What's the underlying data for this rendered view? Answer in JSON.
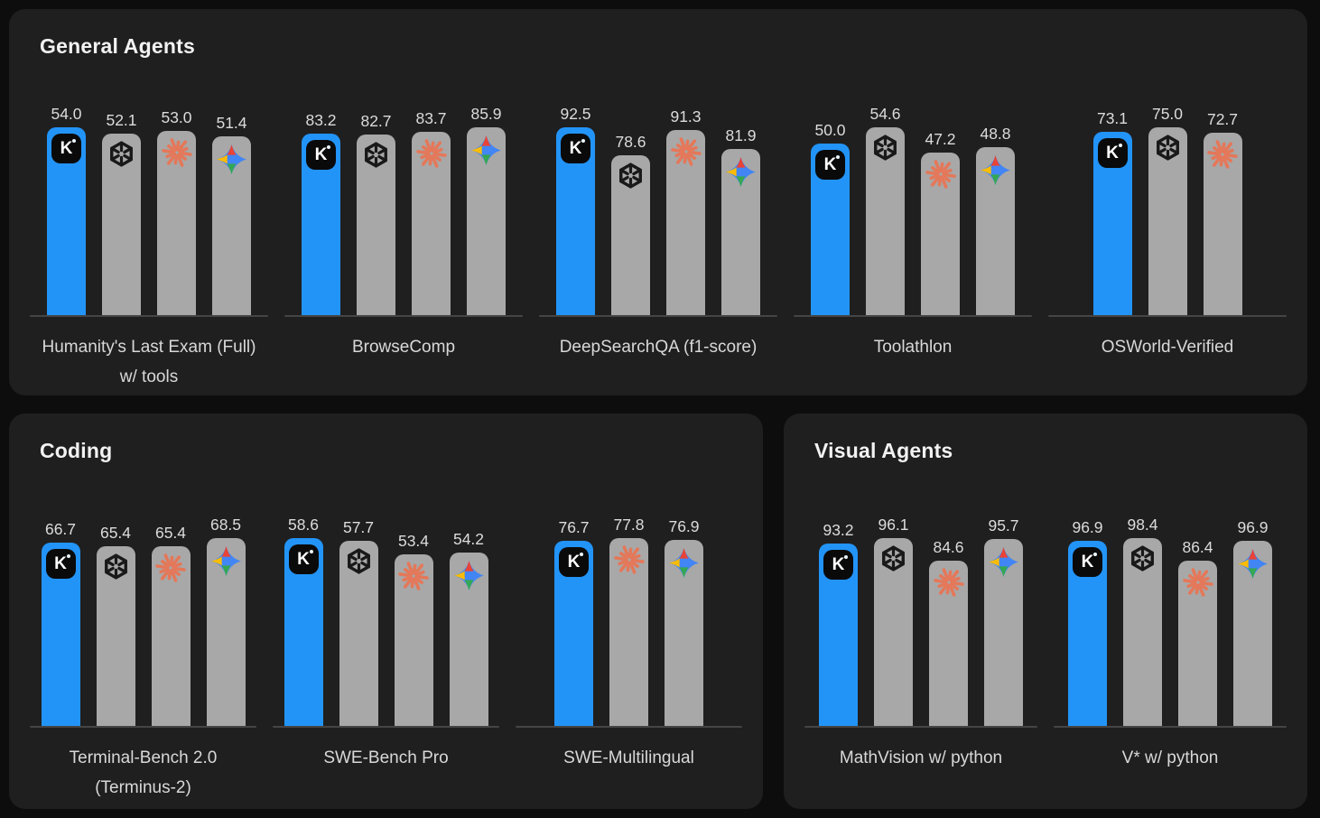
{
  "colors": {
    "highlight_blue": "#2394f7",
    "bar_gray": "#a8a8a8",
    "panel_bg": "#1f1f1f",
    "page_bg": "#0d0d0d",
    "baseline": "#454545",
    "value_text": "#dcdcdc",
    "label_text": "#d8d8d8",
    "title_text": "#f2f2f2",
    "claude_coral": "#e4785a",
    "openai_dark": "#191919",
    "gemini_blue": "#4285f4",
    "gemini_red": "#ea4335",
    "gemini_yellow": "#fbbc05",
    "gemini_green": "#34a853"
  },
  "chart_data": [
    {
      "type": "bar",
      "title": "General Agents",
      "categories": [
        "Humanity's Last Exam (Full) w/ tools",
        "BrowseComp",
        "DeepSearchQA (f1-score)",
        "Toolathlon",
        "OSWorld-Verified"
      ],
      "series": [
        {
          "name": "Kimi",
          "values": [
            54.0,
            83.2,
            92.5,
            50.0,
            73.1
          ]
        },
        {
          "name": "OpenAI",
          "values": [
            52.1,
            82.7,
            78.6,
            54.6,
            75.0
          ]
        },
        {
          "name": "Claude",
          "values": [
            53.0,
            83.7,
            91.3,
            47.2,
            72.7
          ]
        },
        {
          "name": "Gemini",
          "values": [
            51.4,
            85.9,
            81.9,
            48.8,
            null
          ]
        }
      ],
      "ylim": [
        0,
        100
      ],
      "grid": false,
      "legend": "icons-on-bars"
    },
    {
      "type": "bar",
      "title": "Coding",
      "categories": [
        "Terminal-Bench 2.0 (Terminus-2)",
        "SWE-Bench Pro",
        "SWE-Multilingual"
      ],
      "series": [
        {
          "name": "Kimi",
          "values": [
            66.7,
            58.6,
            76.7
          ]
        },
        {
          "name": "OpenAI",
          "values": [
            65.4,
            57.7,
            null
          ]
        },
        {
          "name": "Claude",
          "values": [
            65.4,
            53.4,
            77.8
          ]
        },
        {
          "name": "Gemini",
          "values": [
            68.5,
            54.2,
            76.9
          ]
        }
      ],
      "ylim": [
        0,
        100
      ],
      "grid": false,
      "legend": "icons-on-bars"
    },
    {
      "type": "bar",
      "title": "Visual Agents",
      "categories": [
        "MathVision w/ python",
        "V* w/ python"
      ],
      "series": [
        {
          "name": "Kimi",
          "values": [
            93.2,
            96.9
          ]
        },
        {
          "name": "OpenAI",
          "values": [
            96.1,
            98.4
          ]
        },
        {
          "name": "Claude",
          "values": [
            84.6,
            86.4
          ]
        },
        {
          "name": "Gemini",
          "values": [
            95.7,
            96.9
          ]
        }
      ],
      "ylim": [
        0,
        100
      ],
      "grid": false,
      "legend": "icons-on-bars"
    }
  ],
  "panels": [
    {
      "title": "General Agents",
      "groups": [
        {
          "label_lines": [
            "Humanity's Last Exam (Full)",
            "w/ tools"
          ],
          "bars": [
            {
              "icon": "kimi-k-icon",
              "value": "54.0",
              "highlight": true
            },
            {
              "icon": "openai-icon",
              "value": "52.1",
              "highlight": false
            },
            {
              "icon": "claude-icon",
              "value": "53.0",
              "highlight": false
            },
            {
              "icon": "gemini-icon",
              "value": "51.4",
              "highlight": false
            }
          ]
        },
        {
          "label_lines": [
            "BrowseComp"
          ],
          "bars": [
            {
              "icon": "kimi-k-icon",
              "value": "83.2",
              "highlight": true
            },
            {
              "icon": "openai-icon",
              "value": "82.7",
              "highlight": false
            },
            {
              "icon": "claude-icon",
              "value": "83.7",
              "highlight": false
            },
            {
              "icon": "gemini-icon",
              "value": "85.9",
              "highlight": false
            }
          ]
        },
        {
          "label_lines": [
            "DeepSearchQA (f1-score)"
          ],
          "bars": [
            {
              "icon": "kimi-k-icon",
              "value": "92.5",
              "highlight": true
            },
            {
              "icon": "openai-icon",
              "value": "78.6",
              "highlight": false
            },
            {
              "icon": "claude-icon",
              "value": "91.3",
              "highlight": false
            },
            {
              "icon": "gemini-icon",
              "value": "81.9",
              "highlight": false
            }
          ]
        },
        {
          "label_lines": [
            "Toolathlon"
          ],
          "bars": [
            {
              "icon": "kimi-k-icon",
              "value": "50.0",
              "highlight": true
            },
            {
              "icon": "openai-icon",
              "value": "54.6",
              "highlight": false
            },
            {
              "icon": "claude-icon",
              "value": "47.2",
              "highlight": false
            },
            {
              "icon": "gemini-icon",
              "value": "48.8",
              "highlight": false
            }
          ]
        },
        {
          "label_lines": [
            "OSWorld-Verified"
          ],
          "bars": [
            {
              "icon": "kimi-k-icon",
              "value": "73.1",
              "highlight": true
            },
            {
              "icon": "openai-icon",
              "value": "75.0",
              "highlight": false
            },
            {
              "icon": "claude-icon",
              "value": "72.7",
              "highlight": false
            }
          ]
        }
      ]
    },
    {
      "title": "Coding",
      "groups": [
        {
          "label_lines": [
            "Terminal-Bench 2.0",
            "(Terminus-2)"
          ],
          "bars": [
            {
              "icon": "kimi-k-icon",
              "value": "66.7",
              "highlight": true
            },
            {
              "icon": "openai-icon",
              "value": "65.4",
              "highlight": false
            },
            {
              "icon": "claude-icon",
              "value": "65.4",
              "highlight": false
            },
            {
              "icon": "gemini-icon",
              "value": "68.5",
              "highlight": false
            }
          ]
        },
        {
          "label_lines": [
            "SWE-Bench Pro"
          ],
          "bars": [
            {
              "icon": "kimi-k-icon",
              "value": "58.6",
              "highlight": true
            },
            {
              "icon": "openai-icon",
              "value": "57.7",
              "highlight": false
            },
            {
              "icon": "claude-icon",
              "value": "53.4",
              "highlight": false
            },
            {
              "icon": "gemini-icon",
              "value": "54.2",
              "highlight": false
            }
          ]
        },
        {
          "label_lines": [
            "SWE-Multilingual"
          ],
          "bars": [
            {
              "icon": "kimi-k-icon",
              "value": "76.7",
              "highlight": true
            },
            {
              "icon": "claude-icon",
              "value": "77.8",
              "highlight": false
            },
            {
              "icon": "gemini-icon",
              "value": "76.9",
              "highlight": false
            }
          ]
        }
      ]
    },
    {
      "title": "Visual Agents",
      "groups": [
        {
          "label_lines": [
            "MathVision w/ python"
          ],
          "bars": [
            {
              "icon": "kimi-k-icon",
              "value": "93.2",
              "highlight": true
            },
            {
              "icon": "openai-icon",
              "value": "96.1",
              "highlight": false
            },
            {
              "icon": "claude-icon",
              "value": "84.6",
              "highlight": false
            },
            {
              "icon": "gemini-icon",
              "value": "95.7",
              "highlight": false
            }
          ]
        },
        {
          "label_lines": [
            "V* w/ python"
          ],
          "bars": [
            {
              "icon": "kimi-k-icon",
              "value": "96.9",
              "highlight": true
            },
            {
              "icon": "openai-icon",
              "value": "98.4",
              "highlight": false
            },
            {
              "icon": "claude-icon",
              "value": "86.4",
              "highlight": false
            },
            {
              "icon": "gemini-icon",
              "value": "96.9",
              "highlight": false
            }
          ]
        }
      ]
    }
  ]
}
